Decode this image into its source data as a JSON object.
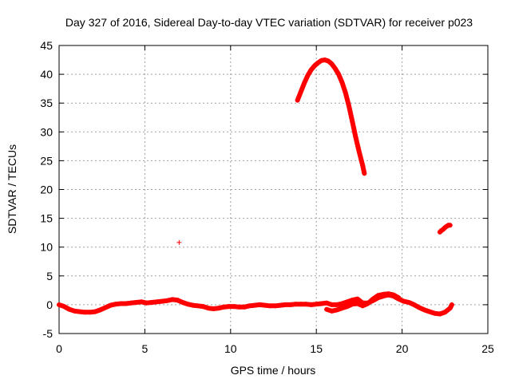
{
  "chart_data": {
    "type": "scatter",
    "title": "Day 327 of 2016, Sidereal Day-to-day VTEC variation (SDTVAR) for receiver p023",
    "xlabel": "GPS time / hours",
    "ylabel": "SDTVAR / TECUs",
    "xlim": [
      0,
      25
    ],
    "ylim": [
      -5,
      45
    ],
    "xticks": [
      0,
      5,
      10,
      15,
      20,
      25
    ],
    "yticks": [
      -5,
      0,
      5,
      10,
      15,
      20,
      25,
      30,
      35,
      40,
      45
    ],
    "grid": true,
    "marker": "+",
    "color": "#ff0000",
    "series": [
      {
        "name": "SDTVAR main",
        "points": [
          [
            0.0,
            0.0
          ],
          [
            0.3,
            -0.3
          ],
          [
            0.6,
            -0.8
          ],
          [
            0.9,
            -1.1
          ],
          [
            1.2,
            -1.2
          ],
          [
            1.5,
            -1.3
          ],
          [
            1.8,
            -1.3
          ],
          [
            2.1,
            -1.2
          ],
          [
            2.4,
            -0.9
          ],
          [
            2.7,
            -0.5
          ],
          [
            3.0,
            -0.1
          ],
          [
            3.3,
            0.1
          ],
          [
            3.6,
            0.2
          ],
          [
            3.9,
            0.2
          ],
          [
            4.2,
            0.3
          ],
          [
            4.5,
            0.4
          ],
          [
            4.8,
            0.5
          ],
          [
            5.1,
            0.3
          ],
          [
            5.4,
            0.4
          ],
          [
            5.7,
            0.5
          ],
          [
            6.0,
            0.6
          ],
          [
            6.3,
            0.7
          ],
          [
            6.6,
            0.9
          ],
          [
            6.9,
            0.8
          ],
          [
            7.2,
            0.4
          ],
          [
            7.5,
            0.1
          ],
          [
            7.8,
            -0.1
          ],
          [
            8.1,
            -0.2
          ],
          [
            8.4,
            -0.3
          ],
          [
            8.7,
            -0.6
          ],
          [
            9.0,
            -0.7
          ],
          [
            9.3,
            -0.6
          ],
          [
            9.6,
            -0.4
          ],
          [
            9.9,
            -0.3
          ],
          [
            10.2,
            -0.3
          ],
          [
            10.5,
            -0.4
          ],
          [
            10.8,
            -0.4
          ],
          [
            11.1,
            -0.2
          ],
          [
            11.4,
            -0.1
          ],
          [
            11.7,
            0.0
          ],
          [
            12.0,
            -0.1
          ],
          [
            12.3,
            -0.2
          ],
          [
            12.6,
            -0.2
          ],
          [
            12.9,
            -0.1
          ],
          [
            13.2,
            0.0
          ],
          [
            13.5,
            0.0
          ],
          [
            13.8,
            0.1
          ],
          [
            14.1,
            0.1
          ],
          [
            14.4,
            0.1
          ],
          [
            14.7,
            0.0
          ],
          [
            15.0,
            0.1
          ],
          [
            15.3,
            0.2
          ],
          [
            15.6,
            0.3
          ],
          [
            15.9,
            0.0
          ],
          [
            16.2,
            0.0
          ],
          [
            16.5,
            0.2
          ],
          [
            16.8,
            0.5
          ],
          [
            17.1,
            0.8
          ],
          [
            17.4,
            1.0
          ],
          [
            17.7,
            0.3
          ],
          [
            18.0,
            0.3
          ],
          [
            18.3,
            0.7
          ],
          [
            18.6,
            1.2
          ],
          [
            18.9,
            1.5
          ],
          [
            19.2,
            1.7
          ],
          [
            19.5,
            1.5
          ],
          [
            19.8,
            1.0
          ],
          [
            20.1,
            0.6
          ],
          [
            20.4,
            0.4
          ],
          [
            20.7,
            0.0
          ],
          [
            21.0,
            -0.5
          ],
          [
            21.3,
            -0.9
          ],
          [
            21.6,
            -1.2
          ],
          [
            21.9,
            -1.5
          ],
          [
            22.2,
            -1.6
          ],
          [
            22.5,
            -1.3
          ],
          [
            22.8,
            -0.6
          ],
          [
            22.9,
            0.0
          ]
        ]
      },
      {
        "name": "SDTVAR secondary",
        "points": [
          [
            15.6,
            -0.8
          ],
          [
            15.9,
            -1.1
          ],
          [
            16.2,
            -0.9
          ],
          [
            16.5,
            -0.6
          ],
          [
            16.8,
            -0.3
          ],
          [
            17.1,
            0.1
          ],
          [
            17.4,
            0.2
          ],
          [
            17.7,
            -0.2
          ],
          [
            18.0,
            0.2
          ],
          [
            18.3,
            1.0
          ],
          [
            18.6,
            1.6
          ],
          [
            18.9,
            1.8
          ],
          [
            19.2,
            1.9
          ],
          [
            19.5,
            1.7
          ],
          [
            19.8,
            1.2
          ]
        ]
      },
      {
        "name": "SDTVAR arc",
        "points": [
          [
            13.9,
            35.5
          ],
          [
            14.1,
            37.0
          ],
          [
            14.3,
            38.5
          ],
          [
            14.5,
            39.8
          ],
          [
            14.7,
            40.8
          ],
          [
            14.9,
            41.5
          ],
          [
            15.1,
            42.0
          ],
          [
            15.3,
            42.4
          ],
          [
            15.5,
            42.5
          ],
          [
            15.7,
            42.3
          ],
          [
            15.9,
            41.8
          ],
          [
            16.1,
            41.0
          ],
          [
            16.3,
            40.0
          ],
          [
            16.5,
            38.6
          ],
          [
            16.7,
            36.8
          ],
          [
            16.9,
            34.5
          ],
          [
            17.1,
            31.8
          ],
          [
            17.3,
            29.0
          ],
          [
            17.5,
            26.5
          ],
          [
            17.7,
            24.2
          ],
          [
            17.8,
            22.8
          ]
        ]
      },
      {
        "name": "SDTVAR late",
        "points": [
          [
            22.2,
            12.6
          ],
          [
            22.3,
            12.9
          ],
          [
            22.4,
            13.1
          ],
          [
            22.5,
            13.4
          ],
          [
            22.6,
            13.6
          ],
          [
            22.7,
            13.8
          ],
          [
            22.8,
            13.8
          ]
        ]
      },
      {
        "name": "SDTVAR outlier",
        "points": [
          [
            7.0,
            10.8
          ]
        ]
      }
    ]
  }
}
